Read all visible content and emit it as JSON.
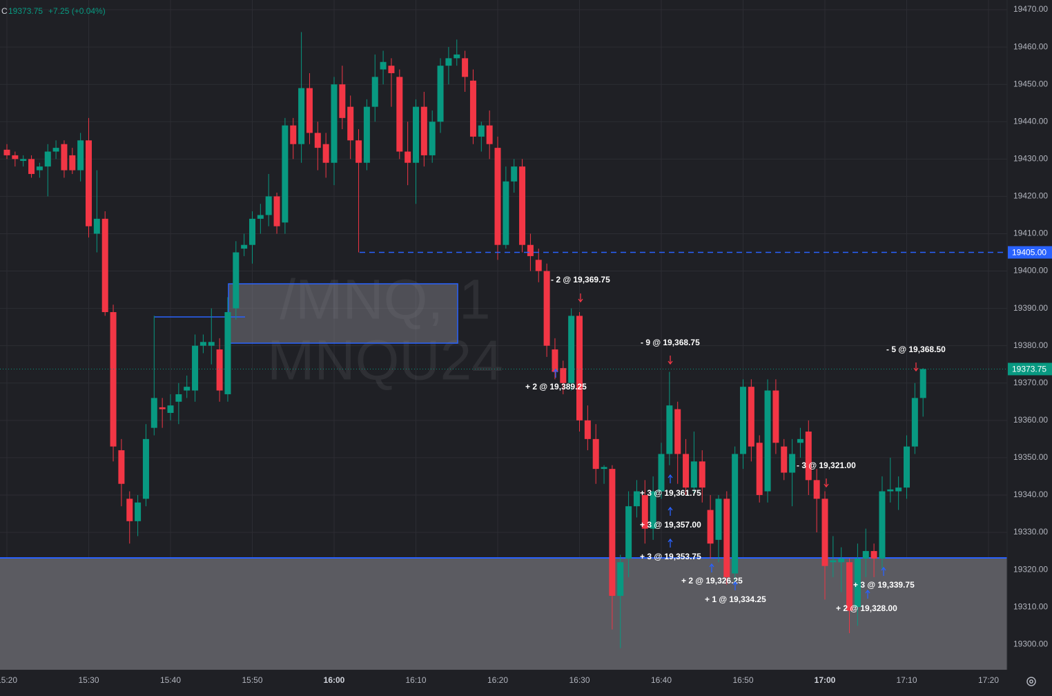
{
  "chart_data": {
    "type": "candlestick",
    "header": {
      "prefix": "C",
      "close": "19373.75",
      "change": "+7.25 (+0.04%)"
    },
    "watermark": [
      "/MNQ, 1",
      "MNQU24"
    ],
    "up_color": "#089981",
    "down_color": "#f23645",
    "categories": [
      "15:20",
      null,
      null,
      null,
      null,
      null,
      null,
      null,
      null,
      null,
      "15:30",
      null,
      null,
      null,
      null,
      null,
      null,
      null,
      null,
      null,
      "15:40",
      null,
      null,
      null,
      null,
      null,
      null,
      null,
      null,
      null,
      "15:50",
      null,
      null,
      null,
      null,
      null,
      null,
      null,
      null,
      null,
      "16:00",
      null,
      null,
      null,
      null,
      null,
      null,
      null,
      null,
      null,
      "16:10",
      null,
      null,
      null,
      null,
      null,
      null,
      null,
      null,
      null,
      "16:20",
      null,
      null,
      null,
      null,
      null,
      null,
      null,
      null,
      null,
      "16:30",
      null,
      null,
      null,
      null,
      null,
      null,
      null,
      null,
      null,
      "16:40",
      null,
      null,
      null,
      null,
      null,
      null,
      null,
      null,
      null,
      "16:50",
      null,
      null,
      null,
      null,
      null,
      null,
      null,
      null,
      null,
      "17:00",
      null,
      null,
      null,
      null,
      null,
      null,
      null,
      null,
      null,
      "17:10",
      null,
      null,
      null,
      null,
      null,
      null,
      null,
      null,
      null,
      "17:20"
    ],
    "open": [
      19432.5,
      19431,
      19429.5,
      19430,
      19427,
      19428,
      19432,
      19434,
      19431,
      19427,
      19435,
      19410,
      19414,
      19389,
      19352,
      19339,
      19333,
      19339,
      19358,
      19363.5,
      19362,
      19365,
      19368,
      19368,
      19380,
      19380,
      19379,
      19367,
      19390,
      19406,
      19407,
      19414,
      19415,
      19420,
      19413,
      19439,
      19434,
      19449,
      19437,
      19434,
      19429,
      19450,
      19444,
      19435,
      19429,
      19444,
      19454,
      19455,
      19452,
      19432,
      19429,
      19444,
      19431,
      19440,
      19455,
      19457,
      19457,
      19451,
      19436,
      19439,
      19433,
      19407,
      19424,
      19428,
      19407,
      19403,
      19400,
      19379,
      19374,
      19370,
      19388,
      19360,
      19355,
      19347,
      19347,
      19313,
      19323,
      19337,
      19340,
      19331,
      19341,
      19351,
      19363,
      19351,
      19342,
      19349,
      19336,
      19328,
      19339,
      19319,
      19351,
      19369,
      19354,
      19341,
      19368,
      19353,
      19346,
      19354,
      19357,
      19344,
      19339,
      19322,
      19322,
      19322,
      19310,
      19323,
      19325,
      19323,
      19341,
      19341,
      19342,
      19353,
      19366,
      null,
      null,
      null,
      null,
      null,
      null,
      null,
      null
    ],
    "high": [
      19434,
      19432,
      19431,
      19431,
      19429,
      19434,
      19435,
      19435,
      19433,
      19437,
      19441,
      19427,
      19416,
      19391,
      19355,
      19341,
      19340,
      19359,
      19388,
      19366,
      19367,
      19370,
      19372,
      19383,
      19383,
      19390,
      19382,
      19393,
      19408,
      19410,
      19416,
      19418,
      19426,
      19421,
      19441,
      19441,
      19464,
      19453,
      19440,
      19437,
      19452,
      19455,
      19447,
      19438,
      19446,
      19458,
      19459,
      19457,
      19454,
      19440,
      19446,
      19448,
      19443,
      19457,
      19460,
      19462,
      19459,
      19454,
      19440,
      19443,
      19436,
      19428,
      19430,
      19430,
      19410,
      19406,
      19402,
      19382,
      19376,
      19390,
      19389,
      19364,
      19359,
      19348,
      19348,
      19324,
      19341,
      19344,
      19344,
      19345,
      19354,
      19373,
      19365,
      19355,
      19357,
      19352,
      19340,
      19340,
      19341,
      19353,
      19371,
      19371,
      19356,
      19371,
      19371,
      19355,
      19355,
      19358,
      19360,
      19347,
      19341,
      19329,
      19326,
      19323,
      19327,
      19331,
      19327,
      19345,
      19350,
      19345,
      19356,
      19370,
      19374,
      null,
      null,
      null,
      null,
      null,
      null,
      null,
      null
    ],
    "low": [
      19430,
      19428,
      19428,
      19425,
      19425,
      19420,
      19430,
      19425,
      19426,
      19424,
      19409,
      19405,
      19388,
      19349,
      19337,
      19327,
      19329,
      19337,
      19356,
      19358,
      19360,
      19359,
      19366,
      19365,
      19378,
      19375,
      19365,
      19365,
      19387,
      19404,
      19402,
      19410,
      19412,
      19410,
      19410,
      19430,
      19429,
      19434,
      19427,
      19425,
      19423,
      19438,
      19430,
      19405,
      19427,
      19440,
      19450,
      19444,
      19430,
      19423,
      19418,
      19428,
      19429,
      19437,
      19450,
      19455,
      19448,
      19434,
      19432,
      19430,
      19403,
      19406,
      19421,
      19405,
      19400,
      19397,
      19377,
      19371,
      19367,
      19368,
      19357,
      19352,
      19343,
      19343,
      19304,
      19299,
      19318,
      19334,
      19327,
      19328,
      19339,
      19348,
      19343,
      19340,
      19340,
      19338,
      19323,
      19322,
      19316,
      19316,
      19347,
      19349,
      19338,
      19338,
      19351,
      19344,
      19337,
      19350,
      19340,
      19330,
      19312,
      19318,
      19314,
      19303,
      19305,
      19318,
      19318,
      19320,
      19338,
      19336,
      19339,
      19351,
      19361,
      null,
      null,
      null,
      null,
      null,
      null,
      null,
      null
    ],
    "close": [
      19431,
      19430,
      19430,
      19426,
      19428,
      19432,
      19433,
      19427,
      19427,
      19435,
      19412,
      19414,
      19389,
      19353,
      19343,
      19333,
      19338,
      19355,
      19366,
      19363,
      19364,
      19367,
      19369,
      19380,
      19381,
      19381,
      19368,
      19389,
      19405,
      19407,
      19414,
      19415,
      19420,
      19412,
      19439,
      19434,
      19449,
      19437,
      19433,
      19429,
      19450,
      19441,
      19435,
      19429,
      19444,
      19452,
      19456,
      19453,
      19432,
      19429,
      19444,
      19431,
      19440,
      19455,
      19457,
      19458,
      19452,
      19436,
      19439,
      19434,
      19407,
      19424,
      19428,
      19407,
      19404,
      19400,
      19380,
      19373,
      19370,
      19388,
      19360,
      19355,
      19347,
      19347.5,
      19313,
      19322,
      19337,
      19341,
      19331,
      19341,
      19351,
      19364,
      19351,
      19342,
      19349,
      19342,
      19327,
      19339,
      19318,
      19351,
      19369,
      19353,
      19340,
      19368,
      19354,
      19346,
      19351,
      19355,
      19344,
      19339,
      19321,
      19322.5,
      19323,
      19309,
      19323,
      19325,
      19323,
      19341,
      19341.5,
      19342,
      19353,
      19366,
      19373.75,
      null,
      null,
      null,
      null,
      null,
      null,
      null,
      null
    ],
    "ylim": [
      19293.2,
      19472.6
    ],
    "yticks": [
      {
        "value": 19300,
        "label": "19300.00"
      },
      {
        "value": 19310,
        "label": "19310.00"
      },
      {
        "value": 19320,
        "label": "19320.00"
      },
      {
        "value": 19330,
        "label": "19330.00"
      },
      {
        "value": 19340,
        "label": "19340.00"
      },
      {
        "value": 19350,
        "label": "19350.00"
      },
      {
        "value": 19360,
        "label": "19360.00"
      },
      {
        "value": 19370,
        "label": "19370.00"
      },
      {
        "value": 19380,
        "label": "19380.00"
      },
      {
        "value": 19390,
        "label": "19390.00"
      },
      {
        "value": 19400,
        "label": "19400.00"
      },
      {
        "value": 19410,
        "label": "19410.00"
      },
      {
        "value": 19420,
        "label": "19420.00"
      },
      {
        "value": 19430,
        "label": "19430.00"
      },
      {
        "value": 19440,
        "label": "19440.00"
      },
      {
        "value": 19450,
        "label": "19450.00"
      },
      {
        "value": 19460,
        "label": "19460.00"
      },
      {
        "value": 19470,
        "label": "19470.00"
      }
    ],
    "price_lines": [
      {
        "value": 19405,
        "label": "19405.00",
        "color": "#2962ff"
      },
      {
        "value": 19373.75,
        "label": "19373.75",
        "color": "#089981"
      }
    ],
    "grid": true,
    "annotations": [
      "- 2 @ 19,369.75",
      "+ 2 @ 19,389.25",
      "- 9 @ 19,368.75",
      "+ 3 @ 19,361.75",
      "+ 3 @ 19,357.00",
      "+ 3 @ 19,353.75",
      "+ 2 @ 19,326.25",
      "+ 1 @ 19,334.25",
      "- 3 @ 19,321.00",
      "+ 3 @ 19,339.75",
      "+ 2 @ 19,328.00",
      "- 5 @ 19,368.50"
    ]
  }
}
